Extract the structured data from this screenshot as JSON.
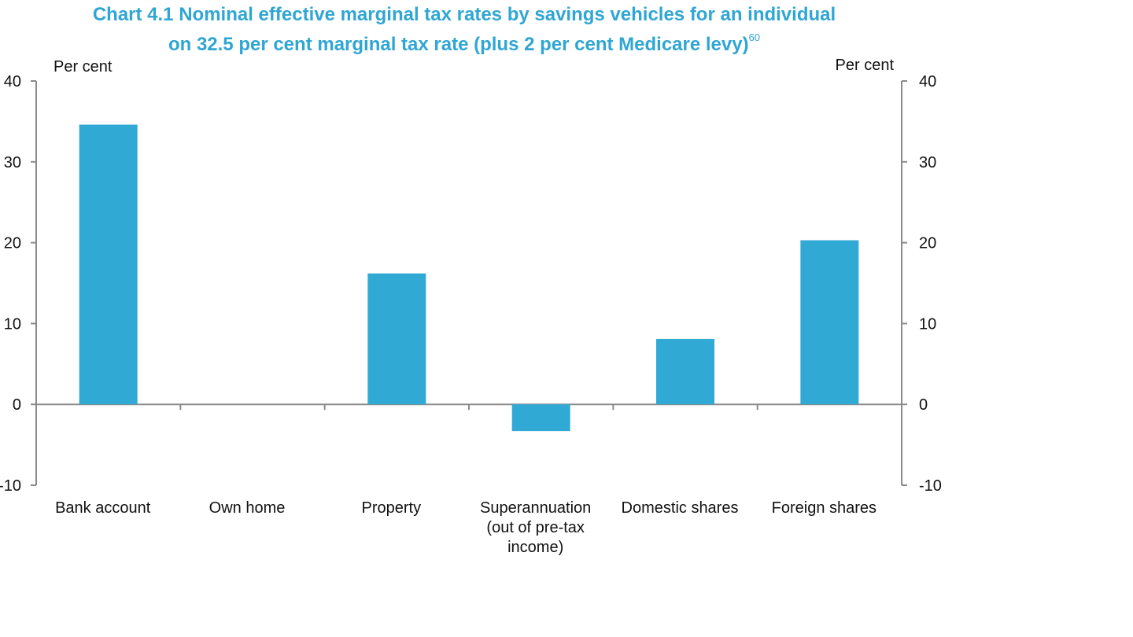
{
  "chart_data": {
    "type": "bar",
    "title": "Chart 4.1 Nominal effective marginal tax rates by savings vehicles for an individual",
    "title_line2": "on 32.5 per cent marginal tax rate (plus 2 per cent Medicare levy)",
    "title_footnote": "60",
    "ylabel_left": "Per cent",
    "ylabel_right": "Per cent",
    "ylim": [
      -10,
      40
    ],
    "yticks": [
      40,
      30,
      20,
      10,
      0,
      -10
    ],
    "ytick_labels": [
      "40",
      "30",
      "20",
      "10",
      "0",
      "-10"
    ],
    "categories": [
      [
        "Bank account"
      ],
      [
        "Own home"
      ],
      [
        "Property"
      ],
      [
        "Superannuation",
        "(out of pre-tax",
        "income)"
      ],
      [
        "Domestic shares"
      ],
      [
        "Foreign shares"
      ]
    ],
    "values": [
      34.6,
      0,
      16.2,
      -3.3,
      8.1,
      20.3
    ],
    "bar_color": "#31a9d5",
    "grid": false,
    "legend": "none"
  }
}
